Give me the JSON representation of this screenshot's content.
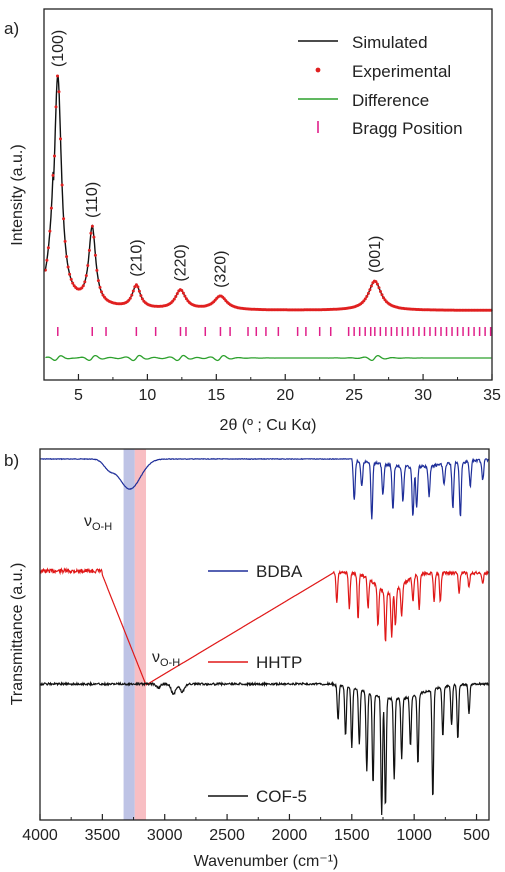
{
  "chart_data": [
    {
      "panel_label": "a)",
      "type": "line",
      "xlabel": "2θ (º ; Cu Kα)",
      "ylabel": "Intensity (a.u.)",
      "xlim": [
        2.5,
        35
      ],
      "xticks": [
        5,
        10,
        15,
        20,
        25,
        30,
        35
      ],
      "yticks_shown": false,
      "legend_position": "top-right",
      "series": [
        {
          "name": "Simulated",
          "color": "#111111",
          "style": "line"
        },
        {
          "name": "Experimental",
          "color": "#e02020",
          "style": "dots"
        },
        {
          "name": "Difference",
          "color": "#2ca02c",
          "style": "line"
        },
        {
          "name": "Bragg Position",
          "color": "#e0208a",
          "style": "ticks"
        }
      ],
      "peaks": [
        {
          "label": "(100)",
          "two_theta": 3.5,
          "rel_intensity": 1.0
        },
        {
          "label": "(110)",
          "two_theta": 6.0,
          "rel_intensity": 0.34
        },
        {
          "label": "(210)",
          "two_theta": 9.2,
          "rel_intensity": 0.1
        },
        {
          "label": "(220)",
          "two_theta": 12.4,
          "rel_intensity": 0.085
        },
        {
          "label": "(320)",
          "two_theta": 15.3,
          "rel_intensity": 0.06
        },
        {
          "label": "(001)",
          "two_theta": 26.5,
          "rel_intensity": 0.13
        }
      ],
      "bragg_positions": [
        3.5,
        6.0,
        7.0,
        9.2,
        10.6,
        12.4,
        12.8,
        14.2,
        15.3,
        16.0,
        17.3,
        17.9,
        18.6,
        19.5,
        20.9,
        21.5,
        22.5,
        23.3,
        24.6,
        25.0,
        25.4,
        25.8,
        26.2,
        26.5,
        26.9,
        27.3,
        27.7,
        28.1,
        28.5,
        28.9,
        29.3,
        29.7,
        30.1,
        30.5,
        30.9,
        31.3,
        31.7,
        32.1,
        32.5,
        32.9,
        33.3,
        33.7,
        34.1,
        34.5,
        34.9
      ]
    },
    {
      "panel_label": "b)",
      "type": "line",
      "xlabel": "Wavenumber (cm⁻¹)",
      "ylabel": "Transmittance (a.u.)",
      "xlim": [
        4000,
        400
      ],
      "xticks": [
        4000,
        3500,
        3000,
        2500,
        2000,
        1500,
        1000,
        500
      ],
      "yticks_shown": false,
      "highlight_bands": [
        {
          "from": 3330,
          "to": 3240,
          "color": "#b3b8e0"
        },
        {
          "from": 3240,
          "to": 3150,
          "color": "#f7b3b8"
        }
      ],
      "annotations": [
        {
          "text": "ν",
          "sub": "O-H",
          "near_series": "BDBA"
        },
        {
          "text": "ν",
          "sub": "O-H",
          "near_series": "HHTP"
        }
      ],
      "series": [
        {
          "name": "BDBA",
          "color": "#1f2f9a"
        },
        {
          "name": "HHTP",
          "color": "#e01818"
        },
        {
          "name": "COF-5",
          "color": "#111111"
        }
      ]
    }
  ]
}
